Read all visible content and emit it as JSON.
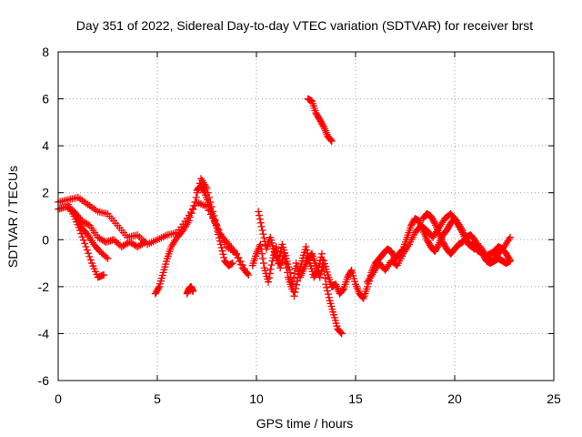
{
  "chart_data": {
    "type": "scatter",
    "title": "Day 351 of 2022, Sidereal Day-to-day VTEC variation (SDTVAR) for receiver brst",
    "xlabel": "GPS time / hours",
    "ylabel": "SDTVAR / TECUs",
    "xlim": [
      0,
      25
    ],
    "ylim": [
      -6,
      8
    ],
    "xticks": [
      0,
      5,
      10,
      15,
      20,
      25
    ],
    "yticks": [
      -6,
      -4,
      -2,
      0,
      2,
      4,
      6,
      8
    ],
    "grid": true,
    "marker": "+",
    "series": [
      {
        "name": "SDTVAR",
        "color": "#ff0000",
        "segments": [
          {
            "x": [
              0.0,
              0.5,
              1.0,
              1.5,
              2.0,
              2.5,
              3.0,
              3.5,
              4.0,
              4.5,
              5.0,
              5.5,
              6.0,
              6.5,
              7.0,
              7.5,
              8.0,
              8.5,
              9.0,
              9.5
            ],
            "y": [
              1.6,
              1.7,
              1.8,
              1.5,
              1.2,
              1.1,
              0.6,
              0.1,
              0.2,
              -0.2,
              0.0,
              0.2,
              0.3,
              0.9,
              1.6,
              1.4,
              0.6,
              -0.3,
              -0.6,
              -1.4
            ]
          },
          {
            "x": [
              0.0,
              0.4,
              0.8,
              1.2,
              1.6,
              2.0,
              2.4,
              2.8,
              3.2,
              3.6,
              4.0,
              4.4
            ],
            "y": [
              1.3,
              1.4,
              1.2,
              0.8,
              0.6,
              0.1,
              -0.1,
              0.0,
              -0.3,
              -0.1,
              -0.3,
              -0.1
            ]
          },
          {
            "x": [
              0.5,
              0.8,
              1.1,
              1.4,
              1.7,
              2.0,
              2.3
            ],
            "y": [
              1.5,
              1.0,
              0.4,
              -0.3,
              -1.0,
              -1.6,
              -1.5
            ]
          },
          {
            "x": [
              0.8,
              1.0,
              1.2,
              1.5,
              1.8,
              2.1,
              2.5
            ],
            "y": [
              1.2,
              0.9,
              0.5,
              0.2,
              -0.2,
              -0.5,
              -0.8
            ]
          },
          {
            "x": [
              4.9,
              5.1,
              5.3,
              5.5,
              5.7,
              6.0,
              6.3,
              6.6,
              6.9,
              7.2,
              7.5,
              7.8,
              8.1,
              8.5,
              8.9,
              9.3,
              9.6
            ],
            "y": [
              -2.3,
              -2.0,
              -1.4,
              -0.8,
              -0.3,
              0.1,
              0.4,
              0.8,
              1.6,
              2.6,
              2.2,
              1.2,
              0.3,
              -0.1,
              -0.5,
              -1.2,
              -1.5
            ]
          },
          {
            "x": [
              6.5,
              6.6,
              6.7,
              6.8
            ],
            "y": [
              -2.3,
              -2.1,
              -2.0,
              -2.2
            ]
          },
          {
            "x": [
              7.0,
              7.2,
              7.4,
              7.6,
              7.8,
              8.0,
              8.2,
              8.4,
              8.6,
              8.8
            ],
            "y": [
              2.1,
              2.3,
              2.0,
              1.5,
              1.0,
              0.5,
              -0.2,
              -0.9,
              -1.1,
              -1.0
            ]
          },
          {
            "x": [
              9.8,
              10.0,
              10.2,
              10.4,
              10.6,
              10.8,
              11.0,
              11.2,
              11.4,
              11.6,
              11.8,
              12.0,
              12.2,
              12.4,
              12.6,
              12.8,
              13.0,
              13.2,
              13.4,
              13.6,
              13.8,
              14.0,
              14.2,
              14.4,
              14.6,
              14.8,
              15.0,
              15.2,
              15.4,
              15.6,
              15.8,
              16.0,
              16.2,
              16.4,
              16.6,
              16.8,
              17.0,
              17.2,
              17.4,
              17.6,
              17.8,
              18.0,
              18.2,
              18.4,
              18.6,
              18.8,
              19.0,
              19.2,
              19.4,
              19.6,
              19.8,
              20.0,
              20.2,
              20.4,
              20.6,
              20.8,
              21.0,
              21.2,
              21.4,
              21.6,
              21.8,
              22.0,
              22.2,
              22.4,
              22.6,
              22.8
            ],
            "y": [
              -1.1,
              -0.6,
              -0.2,
              -1.2,
              -1.8,
              -0.9,
              -0.3,
              -1.2,
              -0.6,
              -1.6,
              -2.1,
              -1.0,
              -1.6,
              -1.2,
              -0.8,
              -0.6,
              -1.1,
              -1.6,
              -0.9,
              -1.5,
              -2.0,
              -1.9,
              -2.3,
              -2.1,
              -1.6,
              -1.3,
              -1.9,
              -2.3,
              -2.5,
              -2.0,
              -1.4,
              -1.0,
              -0.8,
              -0.6,
              -0.4,
              -0.5,
              -0.8,
              -0.6,
              -0.4,
              0.1,
              0.6,
              0.9,
              0.8,
              0.4,
              0.0,
              -0.3,
              -0.5,
              -0.2,
              0.2,
              0.4,
              0.7,
              0.9,
              0.6,
              0.3,
              -0.1,
              -0.2,
              -0.3,
              -0.5,
              -0.5,
              -0.7,
              -0.6,
              -0.5,
              -0.3,
              -0.4,
              -0.6,
              -0.9
            ]
          },
          {
            "x": [
              10.1,
              10.3,
              10.5,
              10.7,
              10.9,
              11.1,
              11.3,
              11.5,
              11.7,
              11.9,
              12.1,
              12.3,
              12.5,
              12.7,
              12.9,
              13.1,
              13.3,
              13.5,
              13.7,
              13.9,
              14.1,
              14.3
            ],
            "y": [
              1.2,
              0.4,
              -0.4,
              0.1,
              -0.5,
              -1.0,
              -0.2,
              -0.8,
              -1.4,
              -2.4,
              -1.6,
              -0.9,
              -0.3,
              -1.0,
              -1.6,
              -1.3,
              -0.6,
              -1.9,
              -2.6,
              -3.2,
              -3.8,
              -4.0
            ]
          },
          {
            "x": [
              12.6,
              12.8,
              13.0,
              13.2,
              13.4,
              13.6,
              13.8
            ],
            "y": [
              6.0,
              5.9,
              5.4,
              5.1,
              4.8,
              4.4,
              4.2
            ]
          },
          {
            "x": [
              15.6,
              15.9,
              16.2,
              16.5,
              16.8,
              17.1,
              17.4,
              17.7,
              18.0,
              18.3,
              18.6,
              18.9,
              19.2,
              19.5,
              19.8,
              20.1,
              20.4,
              20.7,
              21.0,
              21.3,
              21.6,
              21.9,
              22.2,
              22.5,
              22.8
            ],
            "y": [
              -1.8,
              -1.4,
              -1.0,
              -1.3,
              -0.9,
              -1.1,
              -0.6,
              -0.2,
              0.3,
              0.6,
              0.4,
              0.1,
              0.5,
              0.9,
              1.1,
              0.8,
              0.4,
              -0.2,
              -0.4,
              -0.3,
              -0.7,
              -0.9,
              -0.6,
              -0.3,
              0.1
            ]
          },
          {
            "x": [
              18.4,
              18.6,
              18.8,
              19.0,
              19.2,
              19.4,
              19.6,
              19.8,
              20.0,
              20.2,
              20.4,
              20.6,
              20.8,
              21.0,
              21.2,
              21.4,
              21.6,
              21.8,
              22.0,
              22.2,
              22.4,
              22.6,
              22.8
            ],
            "y": [
              0.9,
              1.1,
              1.0,
              0.7,
              0.3,
              -0.1,
              -0.4,
              -0.6,
              -0.4,
              -0.2,
              -0.1,
              0.1,
              0.2,
              0.0,
              -0.3,
              -0.6,
              -0.9,
              -1.0,
              -0.9,
              -0.8,
              -0.9,
              -1.0,
              -0.9
            ]
          }
        ]
      }
    ]
  }
}
